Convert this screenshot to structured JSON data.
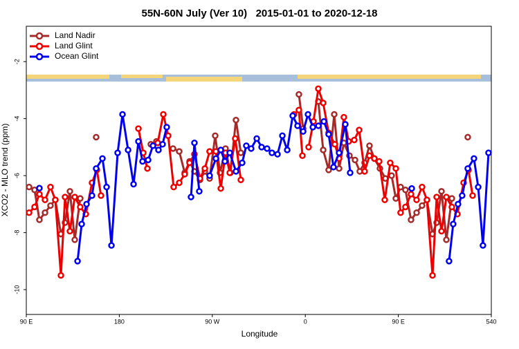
{
  "chart_data": {
    "type": "line",
    "title": "55N-60N July (Ver 10)   2015-01-01 to 2020-12-18",
    "x_label": "Longitude",
    "y_label": "XCO2 - MLO trend (ppm)",
    "xlim": [
      90,
      540
    ],
    "xticks": [
      {
        "value": 90,
        "label": "90 E"
      },
      180,
      {
        "value": 270,
        "label": "90 W"
      },
      {
        "value": 360,
        "label": "0"
      },
      {
        "value": 450,
        "label": "90 E"
      },
      540
    ],
    "ylim": [
      -10.87,
      -0.76
    ],
    "yticks": [
      -10,
      -8,
      -6,
      -4,
      -2
    ],
    "legend": "top-left",
    "series": [
      {
        "name": "Land Nadir",
        "color": "#a52a2a",
        "x": [
          92.7,
          98,
          102.7,
          108.1,
          113.4,
          118.1,
          123.5,
          127.5,
          132.2,
          136.9,
          142.2,
          150,
          157.6,
          185,
          210.5,
          215.9,
          225,
          232,
          238,
          243.3,
          248,
          252.7,
          258.1,
          262.8,
          267.4,
          272.8,
          277.5,
          282.8,
          287.5,
          292.9,
          297.6,
          330,
          353.8,
          357.9,
          365,
          372.6,
          377.3,
          382.6,
          388,
          392.7,
          397.3,
          402.7,
          408.1,
          412.7,
          417.4,
          422.1,
          426.8,
          432.2,
          437.5,
          443.5,
          447.6,
          452.2,
          456.9,
          462.3,
          467.7,
          473,
          477.7,
          483.1,
          487.1,
          491.8,
          496.5,
          501.8,
          510,
          517.2
        ],
        "values": [
          -6.4,
          -6.5,
          -7.55,
          -7.3,
          -7.05,
          -6.85,
          -8.05,
          -7.65,
          -6.55,
          -8.25,
          -6.8,
          null,
          -4.65,
          null,
          -4.9,
          -4.8,
          null,
          -5.05,
          -5.15,
          -5.9,
          -5.5,
          -5.85,
          -6.15,
          -5.85,
          -6.1,
          -4.6,
          -5.9,
          -5.05,
          -5.9,
          -4.05,
          -5.2,
          null,
          -3.15,
          -4.35,
          null,
          -3.4,
          -5.1,
          -5.8,
          -3.85,
          -5.75,
          -4.85,
          -5.3,
          -5.45,
          -5.85,
          -5.55,
          -4.95,
          -5.4,
          -5.75,
          -6.1,
          -6.0,
          -6.8,
          -6.4,
          -6.5,
          -7.55,
          -7.3,
          -7.05,
          -6.85,
          -8.05,
          -7.65,
          -6.55,
          -8.25,
          -6.8,
          null,
          -4.65
        ]
      },
      {
        "name": "Land Glint",
        "color": "#ee0000",
        "x": [
          92.7,
          98,
          102.7,
          108.1,
          113.4,
          118.1,
          123.5,
          127.5,
          132.2,
          136.9,
          142.2,
          147.6,
          153.6,
          158.3,
          162.3,
          180,
          198.5,
          203.2,
          207.2,
          212,
          217.2,
          222.6,
          227.3,
          232.6,
          238,
          243.3,
          248,
          252.7,
          258.1,
          262.8,
          267.4,
          273.5,
          278.2,
          282.8,
          286.9,
          292.2,
          297.6,
          320,
          349.1,
          353.8,
          357.2,
          360,
          363.2,
          367.9,
          372.6,
          377.3,
          382.6,
          388.6,
          392.7,
          397.3,
          402,
          407.4,
          412.1,
          417.4,
          422.1,
          426.8,
          431.5,
          436.9,
          442.2,
          447.6,
          452.2,
          456.9,
          462.3,
          467.7,
          473,
          477.7,
          483.1,
          487.1,
          491.8,
          496.5,
          501.8,
          507.2,
          513.2,
          517.9,
          521.9
        ],
        "values": [
          -7.3,
          -7.1,
          -6.65,
          -6.85,
          -6.4,
          -6.85,
          -9.5,
          -6.75,
          -7.95,
          -6.75,
          -7.1,
          -7.35,
          -6.25,
          -5.8,
          -6.7,
          null,
          -4.35,
          -5.2,
          -5.75,
          null,
          -4.85,
          -3.85,
          -4.6,
          -6.4,
          -6.25,
          -5.95,
          -5.55,
          -5.25,
          -6.1,
          -5.75,
          -5.15,
          -5.15,
          -6.45,
          -5.2,
          -5.9,
          -4.7,
          -6.15,
          null,
          -3.85,
          -3.7,
          -5.3,
          null,
          -5.0,
          -4.1,
          -2.95,
          -3.45,
          -4.5,
          -4.9,
          -5.4,
          -3.95,
          -4.8,
          -4.75,
          -4.4,
          -5.85,
          -5.3,
          -5.4,
          -5.5,
          -6.85,
          -5.55,
          -5.75,
          -7.3,
          -7.1,
          -6.65,
          -6.85,
          -6.4,
          -6.85,
          -9.5,
          -6.75,
          -7.95,
          -6.75,
          -7.1,
          -7.35,
          -6.25,
          -5.8,
          -6.7
        ]
      },
      {
        "name": "Ocean Glint",
        "color": "#0000ee",
        "x": [
          102.7,
          120,
          139.6,
          143.6,
          148.3,
          153.6,
          157.6,
          163.7,
          167.7,
          172.4,
          178.4,
          183.1,
          188.5,
          193.8,
          198.5,
          202.5,
          207.9,
          212.6,
          217.9,
          221.9,
          225.9,
          240,
          249.4,
          252.7,
          257.4,
          262,
          267.4,
          273.5,
          278.2,
          282.2,
          286.9,
          292.9,
          298.9,
          302.9,
          307.6,
          313,
          317.7,
          323,
          327.7,
          333.1,
          337.8,
          342.5,
          347.8,
          352.5,
          357.9,
          362.6,
          367.3,
          372.7,
          378,
          382.6,
          387.3,
          392.7,
          398.7,
          403.4,
          430,
          463,
          480,
          499.1,
          503.1,
          507.8,
          511.8,
          517.2,
          523.2,
          527.3,
          531.9,
          537.3
        ],
        "values": [
          -6.44,
          null,
          -9.0,
          -7.7,
          -7.0,
          -6.7,
          -5.75,
          -5.4,
          -6.4,
          -8.45,
          -5.2,
          -3.85,
          -5.1,
          -6.3,
          -4.8,
          -5.5,
          -5.45,
          -4.95,
          -5.1,
          -4.9,
          -4.3,
          null,
          -6.75,
          -4.85,
          -6.55,
          null,
          -6.0,
          -5.4,
          -5.1,
          -5.5,
          -5.2,
          -5.85,
          -5.55,
          -4.95,
          -5.05,
          -4.7,
          -5.0,
          -5.05,
          -5.2,
          -5.25,
          -4.6,
          -5.1,
          -3.9,
          -4.25,
          -4.45,
          -3.85,
          -4.3,
          -4.25,
          -4.1,
          -4.55,
          -5.7,
          -5.2,
          -4.2,
          -5.9,
          null,
          -6.45,
          null,
          -9.0,
          -7.7,
          -7.0,
          -6.7,
          -5.75,
          -5.4,
          -6.4,
          -8.45,
          -5.2
        ]
      }
    ]
  }
}
